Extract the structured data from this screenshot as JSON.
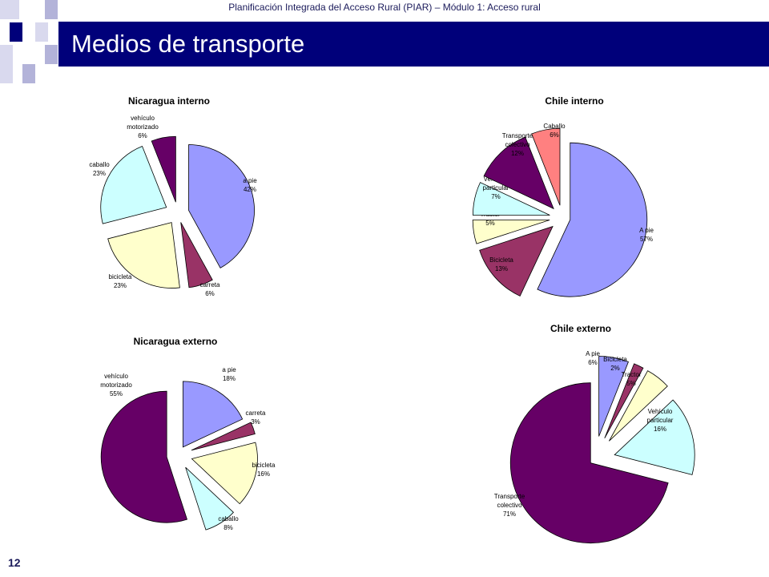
{
  "header": {
    "subtitle": "Planificación Integrada del Acceso Rural (PIAR) – Módulo 1: Acceso rural",
    "slide_title": "Medios de transporte",
    "page_number": "12"
  },
  "colors": {
    "title_bar": "#00007a",
    "deco_dark": "#00007a",
    "deco_light": "#b3b3d9"
  },
  "chart_data": [
    {
      "type": "pie",
      "title": "Nicaragua interno",
      "slices": [
        {
          "label": [
            "a pie",
            "42%"
          ],
          "value": 42,
          "color": "#9999ff"
        },
        {
          "label": [
            "carreta",
            "6%"
          ],
          "value": 6,
          "color": "#993366"
        },
        {
          "label": [
            "bicicleta",
            "23%"
          ],
          "value": 23,
          "color": "#ffffcc"
        },
        {
          "label": [
            "caballo",
            "23%"
          ],
          "value": 23,
          "color": "#ccffff"
        },
        {
          "label": [
            "vehículo",
            "motorizado",
            "6%"
          ],
          "value": 6,
          "color": "#660066"
        }
      ]
    },
    {
      "type": "pie",
      "title": "Chile interno",
      "slices": [
        {
          "label": [
            "A pie",
            "57%"
          ],
          "value": 57,
          "color": "#9999ff"
        },
        {
          "label": [
            "Bicicleta",
            "13%"
          ],
          "value": 13,
          "color": "#993366"
        },
        {
          "label": [
            "Tractor",
            "5%"
          ],
          "value": 5,
          "color": "#ffffcc"
        },
        {
          "label": [
            "Vehículo",
            "particular",
            "7%"
          ],
          "value": 7,
          "color": "#ccffff"
        },
        {
          "label": [
            "Transporte",
            "colectivo",
            "12%"
          ],
          "value": 12,
          "color": "#660066"
        },
        {
          "label": [
            "Caballo",
            "6%"
          ],
          "value": 6,
          "color": "#ff8080"
        }
      ]
    },
    {
      "type": "pie",
      "title": "Nicaragua externo",
      "slices": [
        {
          "label": [
            "a pie",
            "18%"
          ],
          "value": 18,
          "color": "#9999ff"
        },
        {
          "label": [
            "carreta",
            "3%"
          ],
          "value": 3,
          "color": "#993366"
        },
        {
          "label": [
            "bicicleta",
            "16%"
          ],
          "value": 16,
          "color": "#ffffcc"
        },
        {
          "label": [
            "caballo",
            "8%"
          ],
          "value": 8,
          "color": "#ccffff"
        },
        {
          "label": [
            "vehículo",
            "motorizado",
            "55%"
          ],
          "value": 55,
          "color": "#660066"
        }
      ]
    },
    {
      "type": "pie",
      "title": "Chile externo",
      "slices": [
        {
          "label": [
            "A pie",
            "6%"
          ],
          "value": 6,
          "color": "#9999ff"
        },
        {
          "label": [
            "Bicicleta",
            "2%"
          ],
          "value": 2,
          "color": "#993366"
        },
        {
          "label": [
            "Tractor",
            "5%"
          ],
          "value": 5,
          "color": "#ffffcc"
        },
        {
          "label": [
            "Vehículo",
            "particular",
            "16%"
          ],
          "value": 16,
          "color": "#ccffff"
        },
        {
          "label": [
            "Transporte",
            "colectivo",
            "71%"
          ],
          "value": 71,
          "color": "#660066"
        }
      ]
    }
  ]
}
